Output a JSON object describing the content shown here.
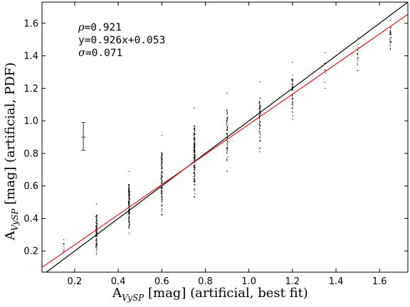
{
  "chart_data": {
    "type": "scatter",
    "xlabel": {
      "main": "A",
      "sub": "VySP",
      "rest": " [mag] (artificial, best fit)"
    },
    "ylabel": {
      "main": "A",
      "sub": "VySP",
      "rest": " [mag] (artificial, PDF)"
    },
    "xlim": [
      0.05,
      1.73
    ],
    "ylim": [
      0.07,
      1.73
    ],
    "xticks": [
      "0.2",
      "0.4",
      "0.6",
      "0.8",
      "1.0",
      "1.2",
      "1.4",
      "1.6"
    ],
    "yticks": [
      "0.2",
      "0.4",
      "0.6",
      "0.8",
      "1.0",
      "1.2",
      "1.4",
      "1.6"
    ],
    "annotations": [
      {
        "symbol": "ρ",
        "text": "=0.921"
      },
      {
        "symbol": "",
        "text": "y=0.926x+0.053"
      },
      {
        "symbol": "σ",
        "text": "=0.071"
      }
    ],
    "lines": [
      {
        "name": "identity",
        "color": "#000000",
        "slope": 1.0,
        "intercept": 0.0
      },
      {
        "name": "fit",
        "color": "#e8141c",
        "slope": 0.926,
        "intercept": 0.053
      }
    ],
    "errorbar": {
      "x": 0.24,
      "y": 0.9,
      "ymin": 0.82,
      "ymax": 0.99
    },
    "point_columns": [
      {
        "x": 0.15,
        "ymin": 0.19,
        "ymax": 0.27,
        "n": 8
      },
      {
        "x": 0.3,
        "ymin": 0.18,
        "ymax": 0.49,
        "n": 90
      },
      {
        "x": 0.45,
        "ymin": 0.31,
        "ymax": 0.69,
        "n": 130
      },
      {
        "x": 0.6,
        "ymin": 0.42,
        "ymax": 0.91,
        "n": 110
      },
      {
        "x": 0.75,
        "ymin": 0.53,
        "ymax": 1.08,
        "n": 150
      },
      {
        "x": 0.9,
        "ymin": 0.69,
        "ymax": 1.17,
        "n": 60
      },
      {
        "x": 1.05,
        "ymin": 0.81,
        "ymax": 1.24,
        "n": 60
      },
      {
        "x": 1.2,
        "ymin": 1.01,
        "ymax": 1.36,
        "n": 45
      },
      {
        "x": 1.35,
        "ymin": 1.2,
        "ymax": 1.42,
        "n": 6
      },
      {
        "x": 1.5,
        "ymin": 1.31,
        "ymax": 1.51,
        "n": 15
      },
      {
        "x": 1.65,
        "ymin": 1.44,
        "ymax": 1.62,
        "n": 30
      }
    ]
  }
}
